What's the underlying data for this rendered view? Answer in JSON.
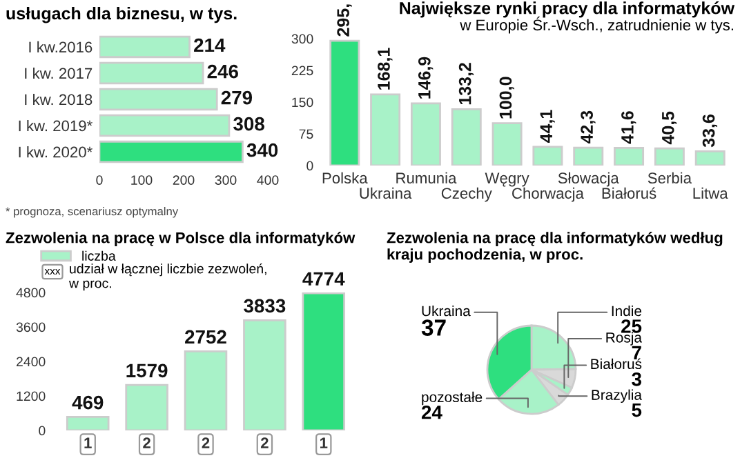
{
  "chart_data": [
    {
      "type": "bar",
      "orientation": "horizontal",
      "title": "usługach dla biznesu, w tys.",
      "categories": [
        "I kw.2016",
        "I kw. 2017",
        "I kw. 2018",
        "I kw. 2019*",
        "I kw. 2020*"
      ],
      "values": [
        214,
        246,
        279,
        308,
        340
      ],
      "colors": [
        "#a8f2c8",
        "#a8f2c8",
        "#a8f2c8",
        "#a8f2c8",
        "#2edf7f"
      ],
      "xlim": [
        0,
        400
      ],
      "xticks": [
        0,
        100,
        200,
        300,
        400
      ],
      "data_labels": true,
      "annotations": [
        "* prognoza, scenariusz optymalny"
      ]
    },
    {
      "type": "bar",
      "title": "Największe rynki pracy dla informatyków",
      "subtitle": "w Europie Śr.-Wsch., zatrudnienie w tys.",
      "categories": [
        "Polska",
        "Ukraina",
        "Rumunia",
        "Czechy",
        "Węgry",
        "Chorwacja",
        "Słowacja",
        "Białoruś",
        "Serbia",
        "Litwa"
      ],
      "values": [
        295,
        168.1,
        146.9,
        133.2,
        100.0,
        44.1,
        42.3,
        41.6,
        40.5,
        33.6
      ],
      "colors": [
        "#2edf7f",
        "#a8f2c8",
        "#a8f2c8",
        "#a8f2c8",
        "#a8f2c8",
        "#a8f2c8",
        "#a8f2c8",
        "#a8f2c8",
        "#a8f2c8",
        "#a8f2c8"
      ],
      "value_labels": [
        "295,",
        "168,1",
        "146,9",
        "133,2",
        "100,0",
        "44,1",
        "42,3",
        "41,6",
        "40,5",
        "33,6"
      ],
      "ylim": [
        0,
        300
      ],
      "yticks": [
        0,
        75,
        150,
        225,
        300
      ]
    },
    {
      "type": "bar",
      "title": "Zezwolenia na pracę w Polsce dla informatyków",
      "categories": [
        "1",
        "2",
        "2",
        "2",
        "1"
      ],
      "series": [
        {
          "name": "liczba",
          "color": "#a8f2c8",
          "colors": [
            "#a8f2c8",
            "#a8f2c8",
            "#a8f2c8",
            "#a8f2c8",
            "#2edf7f"
          ],
          "values": [
            469,
            1579,
            2752,
            3833,
            4774
          ]
        }
      ],
      "ylim": [
        0,
        4800
      ],
      "yticks": [
        0,
        1200,
        2400,
        3600,
        4800
      ],
      "data_labels": true,
      "legend": "top left",
      "annotations": [
        "xxx",
        "udział w łącznej liczbie zezwoleń,\nw proc."
      ]
    },
    {
      "type": "pie",
      "title": "Zezwolenia na pracę dla informatyków według kraju pochodzenia, w proc.",
      "categories": [
        "Indie",
        "Rosja",
        "Białoruś",
        "Brazylia",
        "pozostałe",
        "Ukraina"
      ],
      "values": [
        25,
        7,
        3,
        5,
        24,
        37
      ],
      "colors": [
        "#a8f2c8",
        "#d9d9d9",
        "#a8f2c8",
        "#d9d9d9",
        "#a8f2c8",
        "#2edf7f"
      ],
      "data_labels": true
    }
  ]
}
